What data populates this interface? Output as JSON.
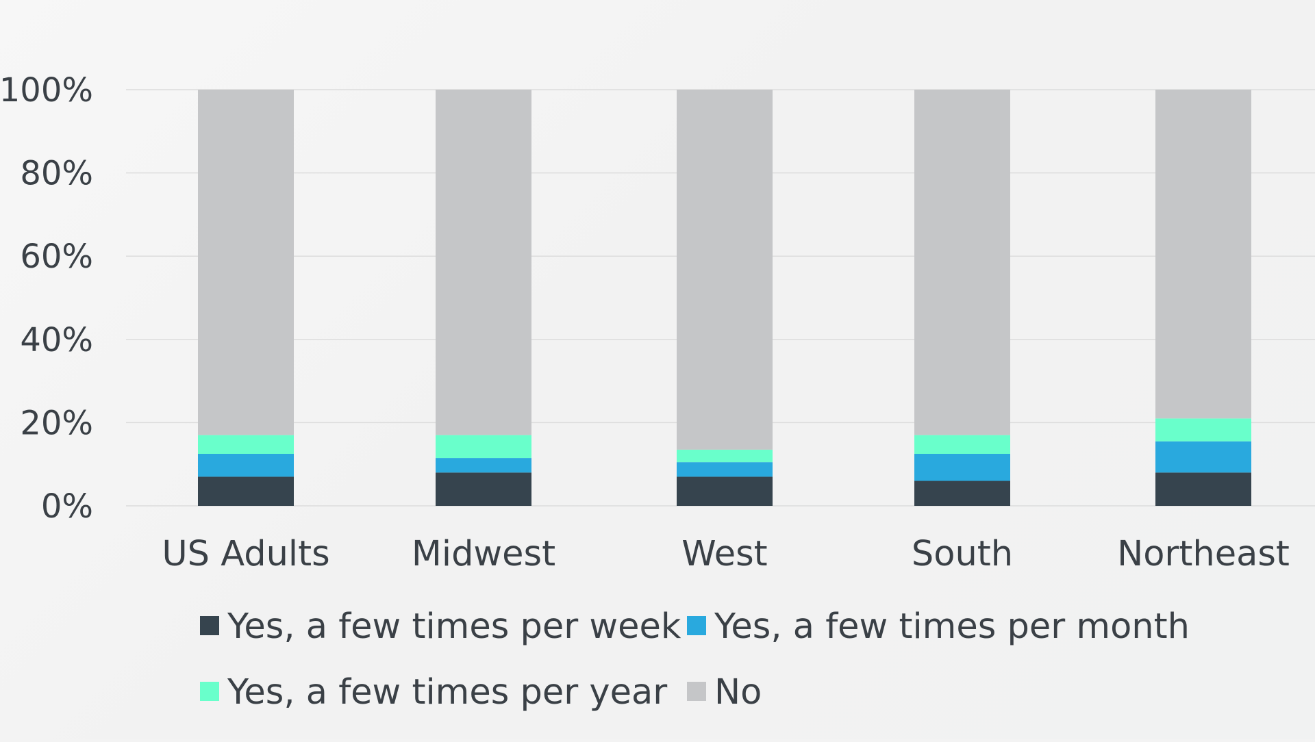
{
  "chart_data": {
    "type": "bar",
    "stacked": true,
    "percent_stacked": true,
    "title": "",
    "xlabel": "",
    "ylabel": "",
    "ylim": [
      0,
      100
    ],
    "yticks": [
      "0%",
      "20%",
      "40%",
      "60%",
      "80%",
      "100%"
    ],
    "categories": [
      "US Adults",
      "Midwest",
      "West",
      "South",
      "Northeast"
    ],
    "series": [
      {
        "name": "Yes, a few times per week",
        "color": "#36444e",
        "values": [
          7,
          8,
          7,
          6,
          8
        ]
      },
      {
        "name": "Yes, a few times per month",
        "color": "#29a9de",
        "values": [
          5.5,
          3.5,
          3.5,
          6.5,
          7.5
        ]
      },
      {
        "name": "Yes, a few times per year",
        "color": "#69ffcb",
        "values": [
          4.5,
          5.5,
          3,
          4.5,
          5.5
        ]
      },
      {
        "name": "No",
        "color": "#c5c6c8",
        "values": [
          83,
          83,
          86.5,
          83,
          79
        ]
      }
    ],
    "grid": true,
    "legend_position": "bottom"
  }
}
